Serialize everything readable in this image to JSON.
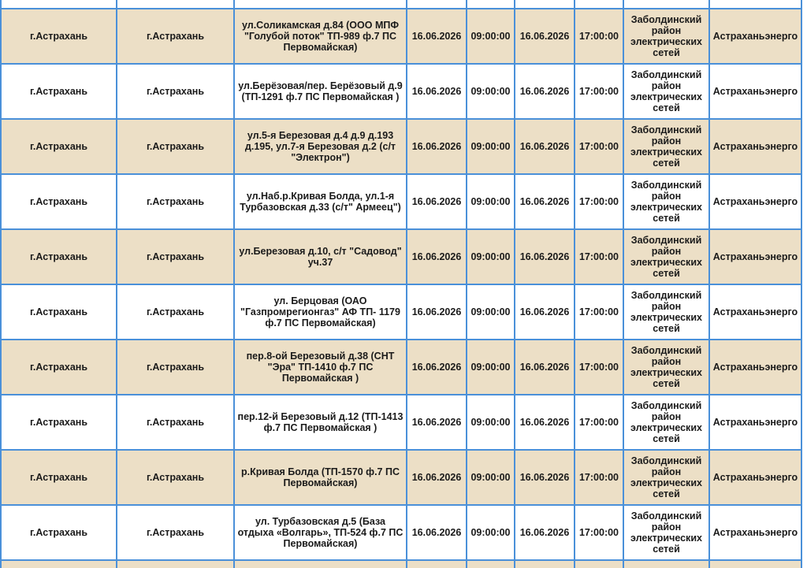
{
  "table": {
    "rows": [
      {
        "region": "г.Астрахань",
        "city": "г.Астрахань",
        "address": "ул.Соликамская д.84 (ООО МПФ \"Голубой поток\" ТП-989 ф.7 ПС Первомайская)",
        "start_date": "16.06.2026",
        "start_time": "09:00:00",
        "end_date": "16.06.2026",
        "end_time": "17:00:00",
        "district": "Заболдинский район электрических сетей",
        "org": "Астраханьэнерго",
        "shade": true
      },
      {
        "region": "г.Астрахань",
        "city": "г.Астрахань",
        "address": "ул.Берёзовая/пер. Берёзовый д.9 (ТП-1291 ф.7 ПС Первомайская )",
        "start_date": "16.06.2026",
        "start_time": "09:00:00",
        "end_date": "16.06.2026",
        "end_time": "17:00:00",
        "district": "Заболдинский район электрических сетей",
        "org": "Астраханьэнерго",
        "shade": false
      },
      {
        "region": "г.Астрахань",
        "city": "г.Астрахань",
        "address": "ул.5-я Березовая д.4 д.9 д.193 д.195, ул.7-я Березовая д.2 (с/т \"Электрон\")",
        "start_date": "16.06.2026",
        "start_time": "09:00:00",
        "end_date": "16.06.2026",
        "end_time": "17:00:00",
        "district": "Заболдинский район электрических сетей",
        "org": "Астраханьэнерго",
        "shade": true
      },
      {
        "region": "г.Астрахань",
        "city": "г.Астрахань",
        "address": "ул.Наб.р.Кривая Болда, ул.1-я Турбазовская д.33 (с/т\" Армеец\")",
        "start_date": "16.06.2026",
        "start_time": "09:00:00",
        "end_date": "16.06.2026",
        "end_time": "17:00:00",
        "district": "Заболдинский район электрических сетей",
        "org": "Астраханьэнерго",
        "shade": false
      },
      {
        "region": "г.Астрахань",
        "city": "г.Астрахань",
        "address": "ул.Березовая д.10, с/т \"Садовод\" уч.37",
        "start_date": "16.06.2026",
        "start_time": "09:00:00",
        "end_date": "16.06.2026",
        "end_time": "17:00:00",
        "district": "Заболдинский район электрических сетей",
        "org": "Астраханьэнерго",
        "shade": true
      },
      {
        "region": "г.Астрахань",
        "city": "г.Астрахань",
        "address": "ул. Берцовая (ОАО \"Газпромрегионгаз\" АФ ТП- 1179 ф.7 ПС Первомайская)",
        "start_date": "16.06.2026",
        "start_time": "09:00:00",
        "end_date": "16.06.2026",
        "end_time": "17:00:00",
        "district": "Заболдинский район электрических сетей",
        "org": "Астраханьэнерго",
        "shade": false
      },
      {
        "region": "г.Астрахань",
        "city": "г.Астрахань",
        "address": "пер.8-ой Березовый д.38 (СНТ \"Эра\" ТП-1410 ф.7 ПС Первомайская )",
        "start_date": "16.06.2026",
        "start_time": "09:00:00",
        "end_date": "16.06.2026",
        "end_time": "17:00:00",
        "district": "Заболдинский район электрических сетей",
        "org": "Астраханьэнерго",
        "shade": true
      },
      {
        "region": "г.Астрахань",
        "city": "г.Астрахань",
        "address": "пер.12-й Березовый д.12 (ТП-1413 ф.7 ПС Первомайская )",
        "start_date": "16.06.2026",
        "start_time": "09:00:00",
        "end_date": "16.06.2026",
        "end_time": "17:00:00",
        "district": "Заболдинский район электрических сетей",
        "org": "Астраханьэнерго",
        "shade": false
      },
      {
        "region": "г.Астрахань",
        "city": "г.Астрахань",
        "address": "р.Кривая Болда (ТП-1570 ф.7 ПС Первомайская)",
        "start_date": "16.06.2026",
        "start_time": "09:00:00",
        "end_date": "16.06.2026",
        "end_time": "17:00:00",
        "district": "Заболдинский район электрических сетей",
        "org": "Астраханьэнерго",
        "shade": true
      },
      {
        "region": "г.Астрахань",
        "city": "г.Астрахань",
        "address": "ул. Турбазовская д.5 (База отдыха «Волгарь», ТП-524 ф.7 ПС Первомайская)",
        "start_date": "16.06.2026",
        "start_time": "09:00:00",
        "end_date": "16.06.2026",
        "end_time": "17:00:00",
        "district": "Заболдинский район электрических сетей",
        "org": "Астраханьэнерго",
        "shade": false
      }
    ]
  },
  "colors": {
    "shaded_row": "#ecdfc6",
    "plain_row": "#ffffff",
    "border": "#4a90d9"
  }
}
